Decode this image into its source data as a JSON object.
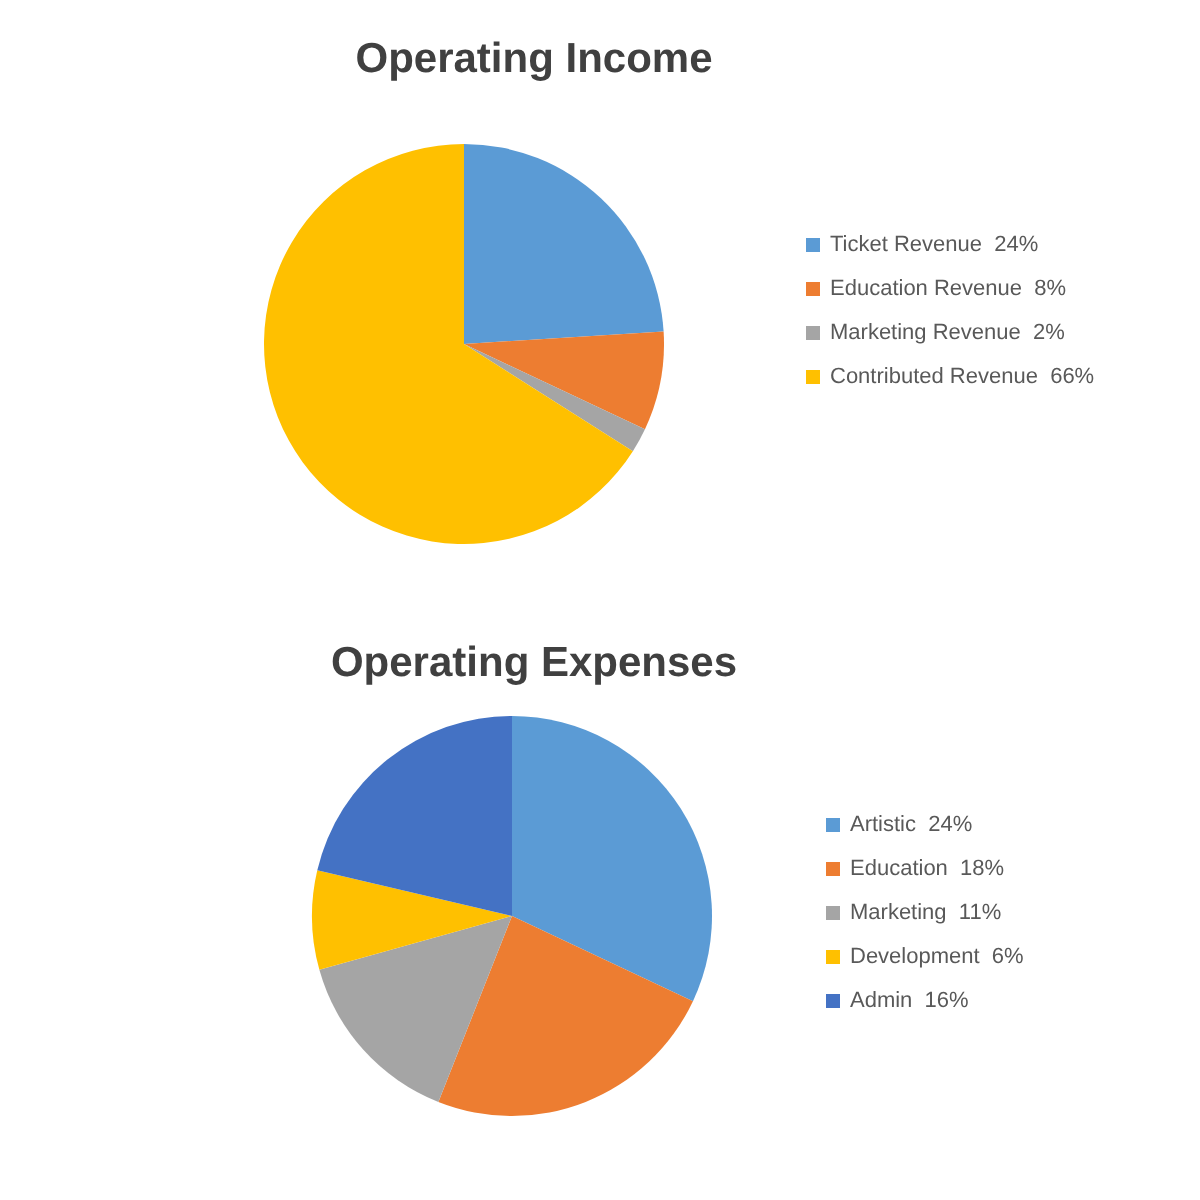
{
  "chart_data": [
    {
      "type": "pie",
      "title": "Operating Income",
      "categories": [
        "Ticket Revenue",
        "Education Revenue",
        "Marketing Revenue",
        "Contributed Revenue"
      ],
      "values": [
        24,
        8,
        2,
        66
      ],
      "value_labels": [
        "24%",
        "8%",
        "2%",
        "66%"
      ],
      "colors": [
        "#5b9bd5",
        "#ed7d31",
        "#a5a5a5",
        "#ffc000"
      ],
      "legend": "right"
    },
    {
      "type": "pie",
      "title": "Operating Expenses",
      "categories": [
        "Artistic",
        "Education",
        "Marketing",
        "Development",
        "Admin"
      ],
      "values": [
        24,
        18,
        11,
        6,
        16
      ],
      "value_labels": [
        "24%",
        "18%",
        "11%",
        "6%",
        "16%"
      ],
      "colors": [
        "#5b9bd5",
        "#ed7d31",
        "#a5a5a5",
        "#ffc000",
        "#4472c4"
      ],
      "legend": "right"
    }
  ]
}
